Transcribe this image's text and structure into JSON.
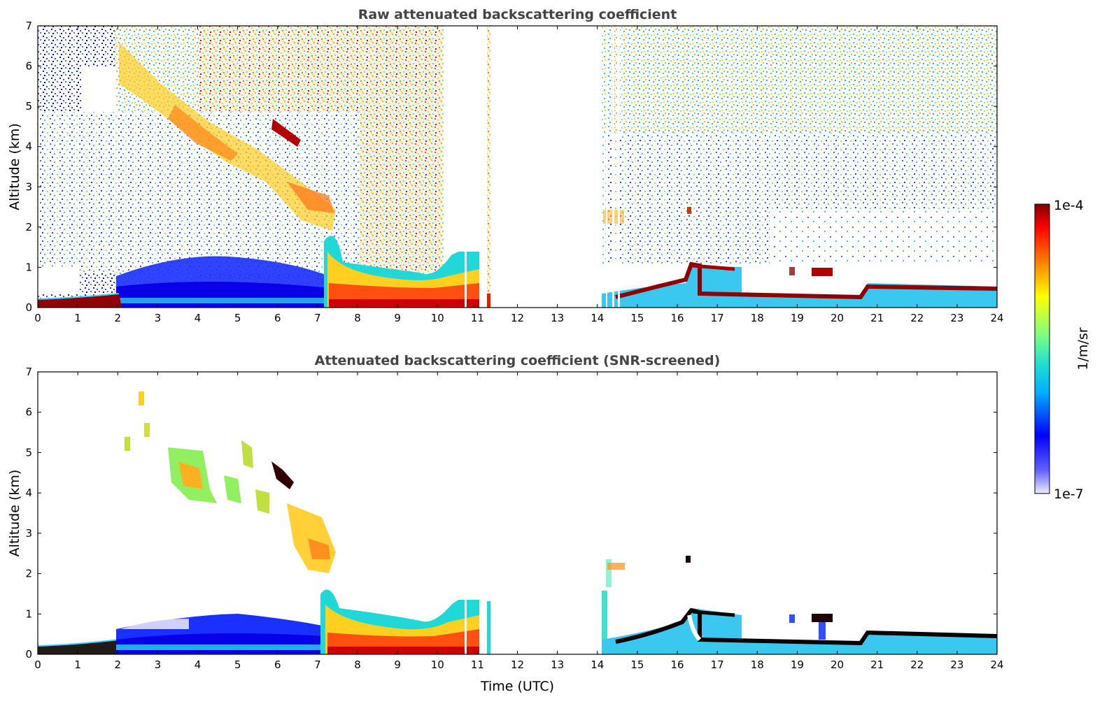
{
  "chart_data": [
    {
      "type": "heatmap",
      "panel": "top",
      "title": "Raw attenuated backscattering coefficient",
      "xlabel": "",
      "ylabel": "Altitude (km)",
      "xlim": [
        0,
        24
      ],
      "ylim": [
        0,
        7
      ],
      "x_ticks": [
        "0",
        "1",
        "2",
        "3",
        "4",
        "5",
        "6",
        "7",
        "8",
        "9",
        "10",
        "11",
        "12",
        "13",
        "14",
        "15",
        "16",
        "17",
        "18",
        "19",
        "20",
        "21",
        "22",
        "23",
        "24"
      ],
      "y_ticks": [
        "0",
        "1",
        "2",
        "3",
        "4",
        "5",
        "6",
        "7"
      ],
      "grid": false,
      "data_gaps_hours": [
        [
          11.3,
          14.1
        ]
      ],
      "features": [
        {
          "name": "surface layer",
          "time": [
            0,
            2.1
          ],
          "altitude": [
            0,
            0.2
          ],
          "level": "high"
        },
        {
          "name": "boundary layer",
          "time": [
            2.1,
            7.2
          ],
          "altitude": [
            0,
            1.0
          ],
          "level": "low"
        },
        {
          "name": "descending cloud",
          "time": [
            2.2,
            7.5
          ],
          "altitude_start": [
            5.0,
            6.5
          ],
          "altitude_end": [
            1.8,
            3.0
          ],
          "level": "medium"
        },
        {
          "name": "dense cloud patch",
          "time": [
            5.9,
            6.5
          ],
          "altitude": [
            4.1,
            4.7
          ],
          "level": "very high"
        },
        {
          "name": "thick aerosol layer",
          "time": [
            7.2,
            11.3
          ],
          "altitude": [
            0,
            1.6
          ],
          "level": "high"
        },
        {
          "name": "afternoon boundary layer",
          "time": [
            14.1,
            24
          ],
          "altitude": [
            0.2,
            0.6
          ],
          "level": "high"
        },
        {
          "name": "cloud tops",
          "time": [
            16.2,
            17.5
          ],
          "altitude": [
            0.3,
            1.1
          ],
          "level": "high"
        },
        {
          "name": "isolated cloud",
          "time": [
            19.3,
            19.8
          ],
          "altitude": [
            0.7,
            1.0
          ],
          "level": "high"
        }
      ]
    },
    {
      "type": "heatmap",
      "panel": "bottom",
      "title": "Attenuated backscattering coefficient (SNR-screened)",
      "xlabel": "Time (UTC)",
      "ylabel": "Altitude (km)",
      "xlim": [
        0,
        24
      ],
      "ylim": [
        0,
        7
      ],
      "x_ticks": [
        "0",
        "1",
        "2",
        "3",
        "4",
        "5",
        "6",
        "7",
        "8",
        "9",
        "10",
        "11",
        "12",
        "13",
        "14",
        "15",
        "16",
        "17",
        "18",
        "19",
        "20",
        "21",
        "22",
        "23",
        "24"
      ],
      "y_ticks": [
        "0",
        "1",
        "2",
        "3",
        "4",
        "5",
        "6",
        "7"
      ],
      "grid": false,
      "data_gaps_hours": [
        [
          11.3,
          14.1
        ]
      ]
    }
  ],
  "colorbar": {
    "max_label": "1e-4",
    "min_label": "1e-7",
    "unit_label": "1/m/sr",
    "scale": "log",
    "colormap": [
      "#ffffff",
      "#0000ff",
      "#00c8ff",
      "#80ff80",
      "#ffff00",
      "#ff8000",
      "#ff0000",
      "#800000"
    ]
  }
}
